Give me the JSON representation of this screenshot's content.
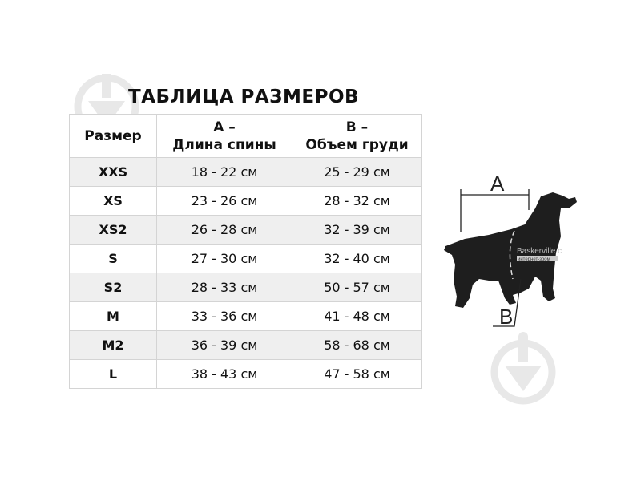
{
  "title": "ТАБЛИЦА РАЗМЕРОВ",
  "table": {
    "headers": [
      {
        "line1": "Размер",
        "line2": ""
      },
      {
        "line1": "A –",
        "line2": "Длина спины"
      },
      {
        "line1": "B –",
        "line2": "Объем груди"
      }
    ],
    "rows": [
      {
        "size": "XXS",
        "a": "18 - 22 см",
        "b": "25 - 29 см"
      },
      {
        "size": "XS",
        "a": "23 - 26 см",
        "b": "28 - 32 см"
      },
      {
        "size": "XS2",
        "a": "26 - 28 см",
        "b": "32 - 39 см"
      },
      {
        "size": "S",
        "a": "27 - 30 см",
        "b": "32 - 40 см"
      },
      {
        "size": "S2",
        "a": "28 - 33 см",
        "b": "50 - 57 см"
      },
      {
        "size": "M",
        "a": "33 - 36 см",
        "b": "41 - 48 см"
      },
      {
        "size": "M2",
        "a": "36 - 39 см",
        "b": "58 - 68 см"
      },
      {
        "size": "L",
        "a": "38 - 43 см",
        "b": "47 - 58 см"
      }
    ]
  },
  "diagram": {
    "label_a": "A",
    "label_b": "B"
  },
  "watermark": {
    "line1": "Baskerville.c",
    "line2": "интернет-зоом"
  },
  "colors": {
    "row_alt": "#efefef",
    "border": "#d4d4d4",
    "watermark_icon": "#e6e6e6"
  }
}
